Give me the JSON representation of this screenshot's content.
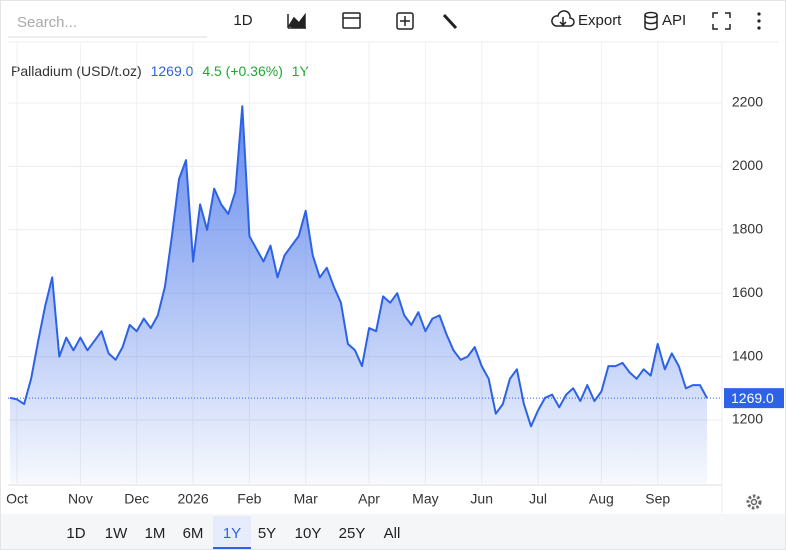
{
  "toolbar": {
    "search": "Search...",
    "interval": "1D",
    "export": "Export",
    "api": "API"
  },
  "ranges": [
    "1D",
    "1W",
    "1M",
    "6M",
    "1Y",
    "5Y",
    "10Y",
    "25Y",
    "All"
  ],
  "selected_range": 4,
  "chart_data": {
    "type": "line",
    "header": {
      "price": "1269.0",
      "change": "4.5 (+0.36%)",
      "period": "1Y"
    },
    "categories": [
      null,
      "Oct",
      null,
      null,
      null,
      null,
      null,
      null,
      null,
      null,
      "Nov",
      null,
      null,
      null,
      null,
      null,
      null,
      null,
      "Dec",
      null,
      null,
      null,
      null,
      null,
      null,
      null,
      "2026",
      null,
      null,
      null,
      null,
      null,
      null,
      null,
      "Feb",
      null,
      null,
      null,
      null,
      null,
      null,
      null,
      "Mar",
      null,
      null,
      null,
      null,
      null,
      null,
      null,
      null,
      "Apr",
      null,
      null,
      null,
      null,
      null,
      null,
      null,
      "May",
      null,
      null,
      null,
      null,
      null,
      null,
      null,
      "Jun",
      null,
      null,
      null,
      null,
      null,
      null,
      null,
      "Jul",
      null,
      null,
      null,
      null,
      null,
      null,
      null,
      null,
      "Aug",
      null,
      null,
      null,
      null,
      null,
      null,
      null,
      "Sep",
      null,
      null,
      null,
      null,
      null,
      null,
      null
    ],
    "series": [
      {
        "name": "Palladium (USD/t.oz)",
        "color": "#2e62e6",
        "values": [
          1270,
          1265,
          1250,
          1330,
          1450,
          1560,
          1650,
          1400,
          1460,
          1420,
          1460,
          1420,
          1450,
          1480,
          1410,
          1390,
          1430,
          1500,
          1480,
          1520,
          1490,
          1530,
          1620,
          1780,
          1960,
          2020,
          1700,
          1880,
          1800,
          1930,
          1880,
          1850,
          1920,
          2190,
          1780,
          1740,
          1700,
          1750,
          1650,
          1720,
          1750,
          1780,
          1860,
          1720,
          1650,
          1680,
          1620,
          1570,
          1440,
          1420,
          1370,
          1490,
          1480,
          1590,
          1570,
          1600,
          1530,
          1500,
          1540,
          1480,
          1520,
          1530,
          1470,
          1420,
          1390,
          1400,
          1430,
          1370,
          1330,
          1220,
          1250,
          1330,
          1360,
          1250,
          1180,
          1230,
          1270,
          1280,
          1240,
          1280,
          1300,
          1260,
          1310,
          1260,
          1290,
          1370,
          1370,
          1380,
          1350,
          1330,
          1360,
          1340,
          1440,
          1360,
          1410,
          1370,
          1300,
          1310,
          1310,
          1269
        ]
      }
    ],
    "ylim": [
      1000,
      2400
    ],
    "yticks": [
      1200,
      1400,
      1600,
      1800,
      2000,
      2200
    ],
    "grid": true
  }
}
